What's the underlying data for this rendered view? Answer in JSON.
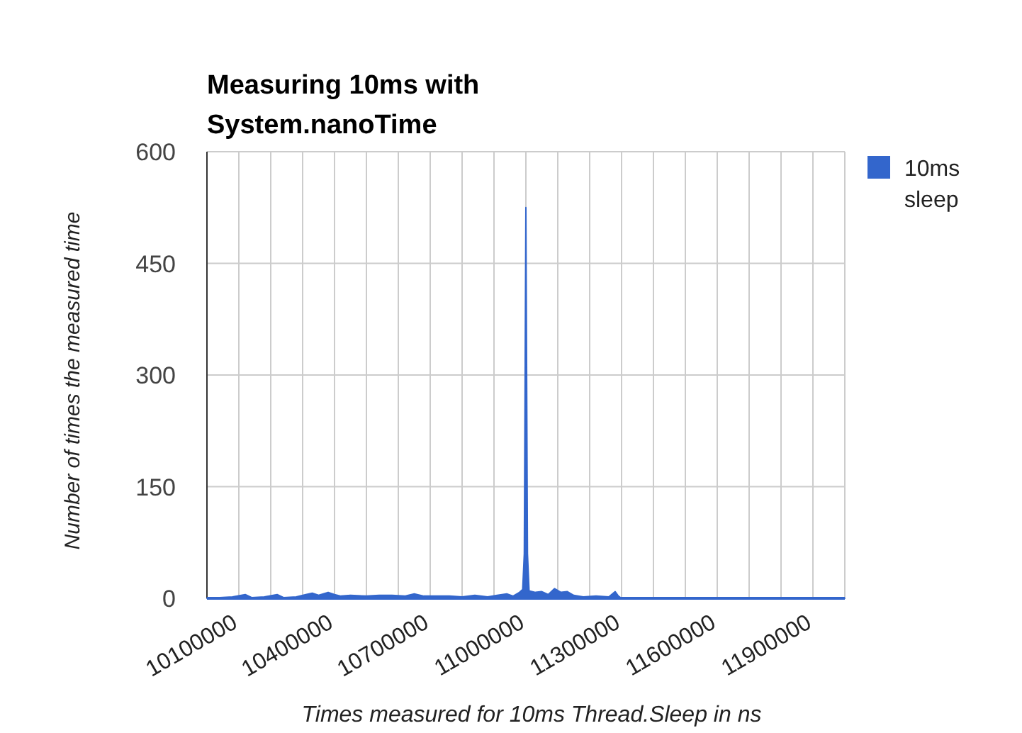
{
  "chart_data": {
    "type": "area",
    "title": "Measuring 10ms with System.nanoTime",
    "xlabel": "Times measured for 10ms Thread.Sleep in ns",
    "ylabel": "Number of times the measured time",
    "x": [
      10000000,
      10040000,
      10080000,
      10120000,
      10140000,
      10180000,
      10220000,
      10240000,
      10280000,
      10310000,
      10330000,
      10350000,
      10380000,
      10400000,
      10420000,
      10450000,
      10500000,
      10540000,
      10580000,
      10620000,
      10650000,
      10680000,
      10720000,
      10760000,
      10800000,
      10840000,
      10880000,
      10910000,
      10940000,
      10960000,
      10980000,
      10990000,
      10995000,
      11000000,
      11005000,
      11010000,
      11030000,
      11050000,
      11070000,
      11090000,
      11110000,
      11130000,
      11150000,
      11180000,
      11220000,
      11260000,
      11280000,
      11290000,
      11300000,
      11400000,
      11600000,
      11800000,
      12000000
    ],
    "series": [
      {
        "name": "10ms sleep",
        "color": "#3366cc",
        "values": [
          0,
          1,
          2,
          5,
          1,
          2,
          5,
          1,
          2,
          5,
          7,
          4,
          8,
          5,
          3,
          4,
          3,
          4,
          4,
          3,
          6,
          3,
          3,
          3,
          2,
          4,
          2,
          4,
          6,
          3,
          8,
          12,
          60,
          525,
          60,
          10,
          8,
          9,
          5,
          13,
          8,
          9,
          4,
          2,
          3,
          2,
          9,
          3,
          0,
          0,
          0,
          0,
          0
        ]
      }
    ],
    "xlim": [
      10000000,
      12000000
    ],
    "xticks": [
      {
        "value": 10000000,
        "label": null
      },
      10100000,
      {
        "value": 10200000,
        "label": null
      },
      {
        "value": 10300000,
        "label": null
      },
      10400000,
      {
        "value": 10500000,
        "label": null
      },
      {
        "value": 10600000,
        "label": null
      },
      10700000,
      {
        "value": 10800000,
        "label": null
      },
      {
        "value": 10900000,
        "label": null
      },
      11000000,
      {
        "value": 11100000,
        "label": null
      },
      {
        "value": 11200000,
        "label": null
      },
      11300000,
      {
        "value": 11400000,
        "label": null
      },
      {
        "value": 11500000,
        "label": null
      },
      11600000,
      {
        "value": 11700000,
        "label": null
      },
      {
        "value": 11800000,
        "label": null
      },
      11900000,
      {
        "value": 12000000,
        "label": null
      }
    ],
    "ylim": [
      0,
      600
    ],
    "yticks": [
      0,
      150,
      300,
      450,
      600
    ],
    "grid": true,
    "legend": "right"
  }
}
